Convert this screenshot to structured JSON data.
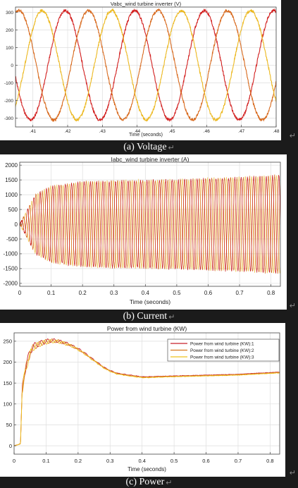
{
  "captions": {
    "a": "(a) Voltage",
    "b": "(b) Current",
    "c": "(c) Power"
  },
  "edge_mark": "↵",
  "chart_data": [
    {
      "type": "line",
      "title": "Vabc_wind turbine inverter (V)",
      "xlabel": "Time (seconds)",
      "ylabel": "",
      "xlim": [
        0.405,
        0.48
      ],
      "ylim": [
        -350,
        330
      ],
      "xticks": [
        0.41,
        0.42,
        0.43,
        0.44,
        0.45,
        0.46,
        0.47,
        0.48
      ],
      "yticks": [
        -300,
        -200,
        -100,
        0,
        100,
        200,
        300
      ],
      "grid": true,
      "waveform": {
        "kind": "three-phase sine",
        "amplitude": 310,
        "frequency_hz": 50
      },
      "series": [
        {
          "color": "#d21f1f",
          "phase_deg": 102
        },
        {
          "color": "#d86a1e",
          "phase_deg": -18
        },
        {
          "color": "#ecb81f",
          "phase_deg": 222
        }
      ]
    },
    {
      "type": "line",
      "title": "Iabc_wind turbine inverter (A)",
      "xlabel": "Time (seconds)",
      "ylabel": "",
      "xlim": [
        0,
        0.83
      ],
      "ylim": [
        -2100,
        2100
      ],
      "xticks": [
        0,
        0.1,
        0.2,
        0.3,
        0.4,
        0.5,
        0.6,
        0.7,
        0.8
      ],
      "yticks": [
        -2000,
        -1500,
        -1000,
        -500,
        0,
        500,
        1000,
        1500,
        2000
      ],
      "grid": true,
      "envelope": {
        "t": [
          0,
          0.05,
          0.1,
          0.2,
          0.3,
          0.4,
          0.5,
          0.6,
          0.7,
          0.8,
          0.83
        ],
        "peak": [
          0,
          1000,
          1280,
          1430,
          1460,
          1480,
          1500,
          1540,
          1580,
          1630,
          1650
        ]
      },
      "series": [
        {
          "color": "#c81a1a",
          "phase_deg": 0
        },
        {
          "color": "#d8691e",
          "phase_deg": -120
        },
        {
          "color": "#f0cc6a",
          "phase_deg": 120
        }
      ]
    },
    {
      "type": "line",
      "title": "Power from wind turbine (KW)",
      "xlabel": "Time (seconds)",
      "ylabel": "",
      "xlim": [
        0,
        0.83
      ],
      "ylim": [
        -20,
        270
      ],
      "xticks": [
        0,
        0.1,
        0.2,
        0.3,
        0.4,
        0.5,
        0.6,
        0.7,
        0.8
      ],
      "yticks": [
        0,
        50,
        100,
        150,
        200,
        250
      ],
      "grid": true,
      "legend": "top-right",
      "x": [
        0,
        0.01,
        0.02,
        0.025,
        0.03,
        0.04,
        0.05,
        0.06,
        0.08,
        0.1,
        0.12,
        0.14,
        0.16,
        0.18,
        0.2,
        0.22,
        0.25,
        0.28,
        0.3,
        0.32,
        0.35,
        0.38,
        0.4,
        0.42,
        0.45,
        0.5,
        0.55,
        0.6,
        0.65,
        0.7,
        0.75,
        0.8,
        0.82
      ],
      "series": [
        {
          "name": "Power from wind turbine (KW):1",
          "color": "#c8202a",
          "values": [
            0,
            2,
            5,
            130,
            165,
            200,
            225,
            238,
            245,
            250,
            252,
            250,
            246,
            240,
            232,
            222,
            205,
            188,
            180,
            174,
            170,
            167,
            165,
            165,
            166,
            167,
            168,
            169,
            170,
            171,
            173,
            175,
            176
          ]
        },
        {
          "name": "Power from wind turbine (KW):2",
          "color": "#d8791e",
          "values": [
            0,
            2,
            5,
            128,
            160,
            196,
            222,
            236,
            244,
            249,
            251,
            250,
            245,
            239,
            231,
            221,
            204,
            187,
            179,
            173,
            169,
            166,
            164,
            164,
            165,
            166,
            167,
            168,
            169,
            170,
            172,
            174,
            175
          ]
        },
        {
          "name": "Power from wind turbine (KW):3",
          "color": "#efc21f",
          "values": [
            0,
            2,
            5,
            126,
            158,
            194,
            220,
            235,
            243,
            248,
            250,
            249,
            244,
            238,
            230,
            220,
            203,
            186,
            178,
            172,
            168,
            165,
            163,
            163,
            164,
            165,
            166,
            167,
            168,
            169,
            171,
            173,
            174
          ]
        }
      ]
    }
  ]
}
